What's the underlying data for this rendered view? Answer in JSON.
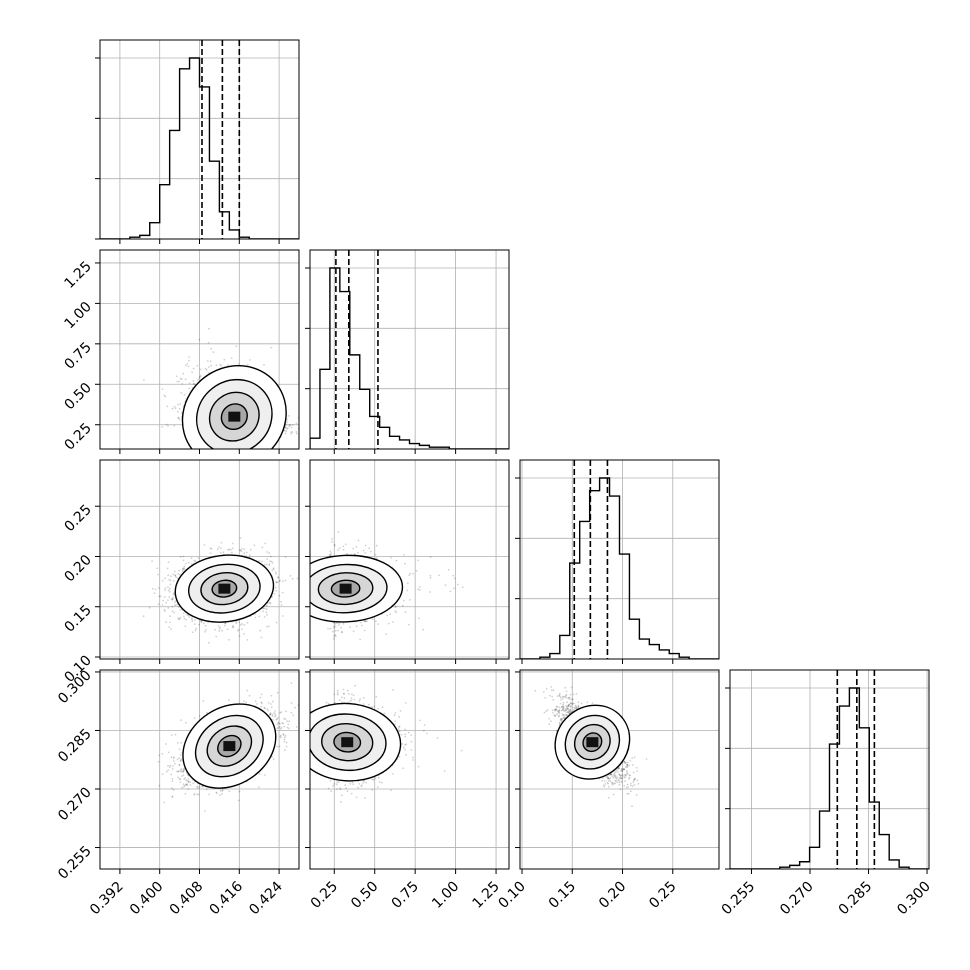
{
  "chart_data": {
    "type": "corner",
    "parameters": [
      {
        "range": [
          0.388,
          0.428
        ],
        "ticks": [
          "0.392",
          "0.400",
          "0.408",
          "0.416",
          "0.424"
        ],
        "tick_values": [
          0.392,
          0.4,
          0.408,
          0.416,
          0.424
        ],
        "quantiles": [
          0.4085,
          0.4126,
          0.416
        ]
      },
      {
        "range": [
          0.1,
          1.33
        ],
        "ticks": [
          "0.25",
          "0.50",
          "0.75",
          "1.00",
          "1.25"
        ],
        "tick_values": [
          0.25,
          0.5,
          0.75,
          1.0,
          1.25
        ],
        "quantiles": [
          0.26,
          0.34,
          0.52
        ]
      },
      {
        "range": [
          0.098,
          0.296
        ],
        "ticks": [
          "0.10",
          "0.15",
          "0.20",
          "0.25"
        ],
        "tick_values": [
          0.1,
          0.15,
          0.2,
          0.25
        ],
        "quantiles": [
          0.152,
          0.168,
          0.185
        ]
      },
      {
        "range": [
          0.2495,
          0.3005
        ],
        "ticks": [
          "0.255",
          "0.270",
          "0.285",
          "0.300"
        ],
        "tick_values": [
          0.255,
          0.27,
          0.285,
          0.3
        ],
        "quantiles": [
          0.277,
          0.282,
          0.2865
        ]
      }
    ],
    "histograms": [
      {
        "edges_start": 0.388,
        "bin_width": 0.002,
        "counts": [
          0,
          0,
          0,
          1,
          2,
          9,
          30,
          60,
          94,
          100,
          84,
          43,
          15,
          5,
          1,
          0,
          0,
          0,
          0,
          0
        ]
      },
      {
        "edges_start": 0.1,
        "bin_width": 0.0615,
        "counts": [
          6,
          44,
          100,
          87,
          52,
          33,
          18,
          12,
          7,
          5,
          3,
          2,
          1,
          1,
          0,
          0,
          0,
          0,
          0,
          0
        ]
      },
      {
        "edges_start": 0.098,
        "bin_width": 0.0099,
        "counts": [
          0,
          0,
          1,
          3,
          13,
          53,
          76,
          93,
          100,
          90,
          58,
          22,
          11,
          8,
          5,
          3,
          1,
          0,
          0,
          0
        ]
      },
      {
        "edges_start": 0.2495,
        "bin_width": 0.00255,
        "counts": [
          0,
          0,
          0,
          0,
          0,
          1,
          2,
          4,
          12,
          32,
          69,
          90,
          100,
          78,
          37,
          19,
          5,
          1,
          0,
          0
        ]
      }
    ],
    "pairs": [
      {
        "x": 0,
        "y": 1,
        "center": [
          0.415,
          0.3
        ],
        "sigma": [
          0.0045,
          0.15
        ],
        "rho": -0.35
      },
      {
        "x": 0,
        "y": 2,
        "center": [
          0.413,
          0.168
        ],
        "sigma": [
          0.0045,
          0.015
        ],
        "rho": 0.1
      },
      {
        "x": 1,
        "y": 2,
        "center": [
          0.32,
          0.168
        ],
        "sigma": [
          0.16,
          0.015
        ],
        "rho": 0.05
      },
      {
        "x": 0,
        "y": 3,
        "center": [
          0.414,
          0.281
        ],
        "sigma": [
          0.0045,
          0.0045
        ],
        "rho": 0.55
      },
      {
        "x": 1,
        "y": 3,
        "center": [
          0.33,
          0.282
        ],
        "sigma": [
          0.15,
          0.0045
        ],
        "rho": -0.05
      },
      {
        "x": 2,
        "y": 3,
        "center": [
          0.17,
          0.282
        ],
        "sigma": [
          0.016,
          0.0045
        ],
        "rho": -0.75
      }
    ],
    "grid": true,
    "contour_levels": [
      "0.5σ",
      "1σ",
      "1.5σ",
      "2σ"
    ]
  }
}
